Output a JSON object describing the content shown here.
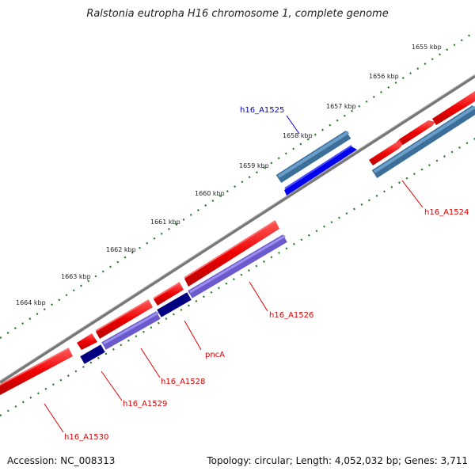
{
  "title": "Ralstonia eutropha H16 chromosome 1, complete genome",
  "footer": {
    "accession": "Accession: NC_008313",
    "summary": "Topology: circular; Length: 4,052,032 bp; Genes: 3,711"
  },
  "kbp_labels": [
    "1655 kbp",
    "1656 kbp",
    "1657 kbp",
    "1658 kbp",
    "1659 kbp",
    "1660 kbp",
    "1661 kbp",
    "1662 kbp",
    "1663 kbp",
    "1664 kbp"
  ],
  "gene_labels": [
    {
      "id": "h16_A1525",
      "text": "h16_A1525",
      "color": "#0000cc"
    },
    {
      "id": "h16_A1524",
      "text": "h16_A1524",
      "color": "#dd0000"
    },
    {
      "id": "h16_A1526",
      "text": "h16_A1526",
      "color": "#dd0000"
    },
    {
      "id": "pncA",
      "text": "pncA",
      "color": "#dd0000"
    },
    {
      "id": "h16_A1528",
      "text": "h16_A1528",
      "color": "#dd0000"
    },
    {
      "id": "h16_A1529",
      "text": "h16_A1529",
      "color": "#dd0000"
    },
    {
      "id": "h16_A1530",
      "text": "h16_A1530",
      "color": "#dd0000"
    }
  ],
  "colors": {
    "backbone": "#888888",
    "tick": "#1f7a1f",
    "cds_forward": "#ee0000",
    "cds_reverse": "#7b68ee",
    "gene_blue": "#1010ee",
    "steel": "#4682b4",
    "navy": "#000080"
  }
}
